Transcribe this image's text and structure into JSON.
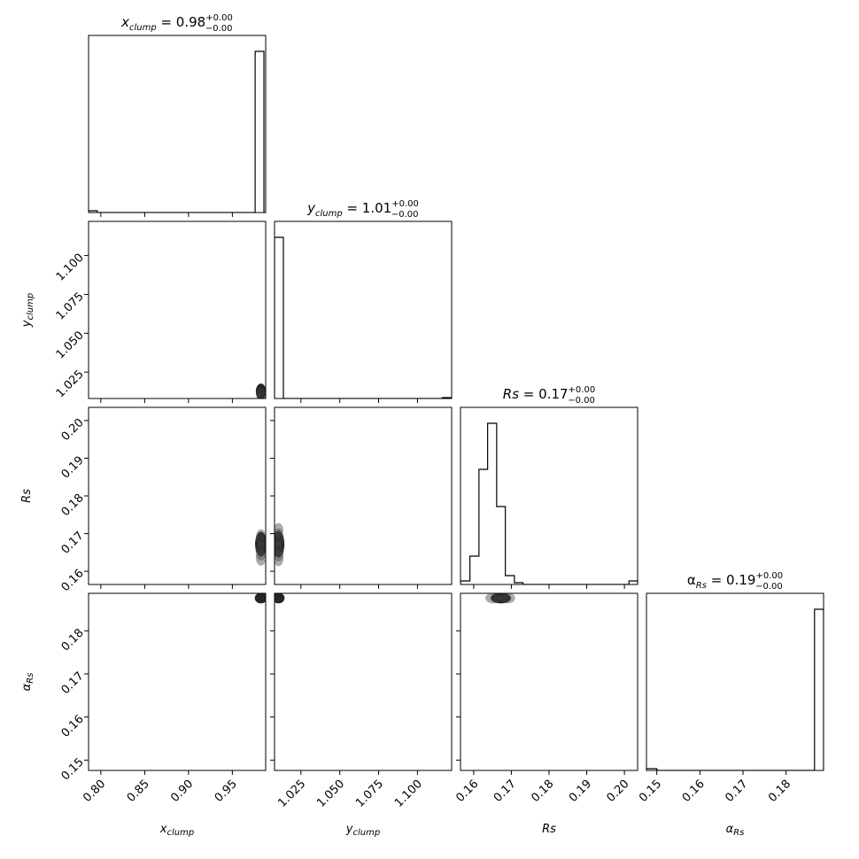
{
  "chart_data": {
    "type": "corner",
    "parameters": [
      {
        "key": "x_clump",
        "symbol": "x",
        "subscript": "clump",
        "range": [
          0.786,
          0.988
        ],
        "ticks": [
          "0.80",
          "0.85",
          "0.90",
          "0.95"
        ],
        "tick_values": [
          0.8,
          0.85,
          0.9,
          0.95
        ],
        "title": {
          "median": "0.98",
          "upper": "+0.00",
          "lower": "−0.00"
        },
        "hist": {
          "edges": [
            0.786,
            0.796,
            0.976,
            0.986,
            0.988
          ],
          "heights": [
            0.01,
            0.0,
            0.91,
            0.0
          ]
        }
      },
      {
        "key": "y_clump",
        "symbol": "y",
        "subscript": "clump",
        "range": [
          1.008,
          1.122
        ],
        "ticks": [
          "1.025",
          "1.050",
          "1.075",
          "1.100"
        ],
        "tick_values": [
          1.025,
          1.05,
          1.075,
          1.1
        ],
        "title": {
          "median": "1.01",
          "upper": "+0.00",
          "lower": "−0.00"
        },
        "hist": {
          "edges": [
            1.008,
            1.0137,
            1.116,
            1.122
          ],
          "heights": [
            0.91,
            0.0,
            0.005
          ]
        }
      },
      {
        "key": "Rs",
        "symbol": "Rs",
        "subscript": "",
        "range": [
          0.1565,
          0.2035
        ],
        "ticks": [
          "0.16",
          "0.17",
          "0.18",
          "0.19",
          "0.20"
        ],
        "tick_values": [
          0.16,
          0.17,
          0.18,
          0.19,
          0.2
        ],
        "title": {
          "median": "0.17",
          "upper": "+0.00",
          "lower": "−0.00"
        },
        "hist": {
          "edges": [
            0.1565,
            0.159,
            0.1614,
            0.1637,
            0.1661,
            0.1684,
            0.1708,
            0.1731,
            0.2012,
            0.2035
          ],
          "heights": [
            0.02,
            0.16,
            0.65,
            0.91,
            0.44,
            0.05,
            0.01,
            0.0,
            0.02
          ]
        }
      },
      {
        "key": "alpha_Rs",
        "symbol": "α",
        "subscript": "Rs",
        "range": [
          0.1476,
          0.1887
        ],
        "ticks": [
          "0.15",
          "0.16",
          "0.17",
          "0.18"
        ],
        "tick_values": [
          0.15,
          0.16,
          0.17,
          0.18
        ],
        "title": {
          "median": "0.19",
          "upper": "+0.00",
          "lower": "−0.00"
        },
        "hist": {
          "edges": [
            0.1476,
            0.15,
            0.1866,
            0.1887
          ],
          "heights": [
            0.01,
            0.0,
            0.91
          ]
        }
      }
    ],
    "densities": [
      {
        "row": 1,
        "col": 0,
        "points": [
          [
            0.9826,
            1.0125,
            0.1
          ],
          [
            0.9826,
            1.0105,
            0.06
          ]
        ]
      },
      {
        "row": 2,
        "col": 0,
        "points": [
          [
            0.9826,
            0.1672,
            0.2
          ],
          [
            0.9826,
            0.1652,
            0.12
          ],
          [
            0.9826,
            0.169,
            0.1
          ],
          [
            0.9826,
            0.1635,
            0.09
          ]
        ]
      },
      {
        "row": 2,
        "col": 1,
        "points": [
          [
            1.0105,
            0.1672,
            0.22
          ],
          [
            1.0105,
            0.1652,
            0.14
          ],
          [
            1.0105,
            0.169,
            0.12
          ],
          [
            1.0105,
            0.1635,
            0.1
          ],
          [
            1.0105,
            0.171,
            0.07
          ]
        ]
      },
      {
        "row": 3,
        "col": 0,
        "points": [
          [
            0.9826,
            0.1876,
            0.12
          ]
        ]
      },
      {
        "row": 3,
        "col": 1,
        "points": [
          [
            1.0105,
            0.1876,
            0.12
          ]
        ]
      },
      {
        "row": 3,
        "col": 2,
        "points": [
          [
            0.1672,
            0.1876,
            0.3
          ],
          [
            0.1652,
            0.1876,
            0.2
          ],
          [
            0.169,
            0.1876,
            0.18
          ]
        ]
      }
    ]
  }
}
